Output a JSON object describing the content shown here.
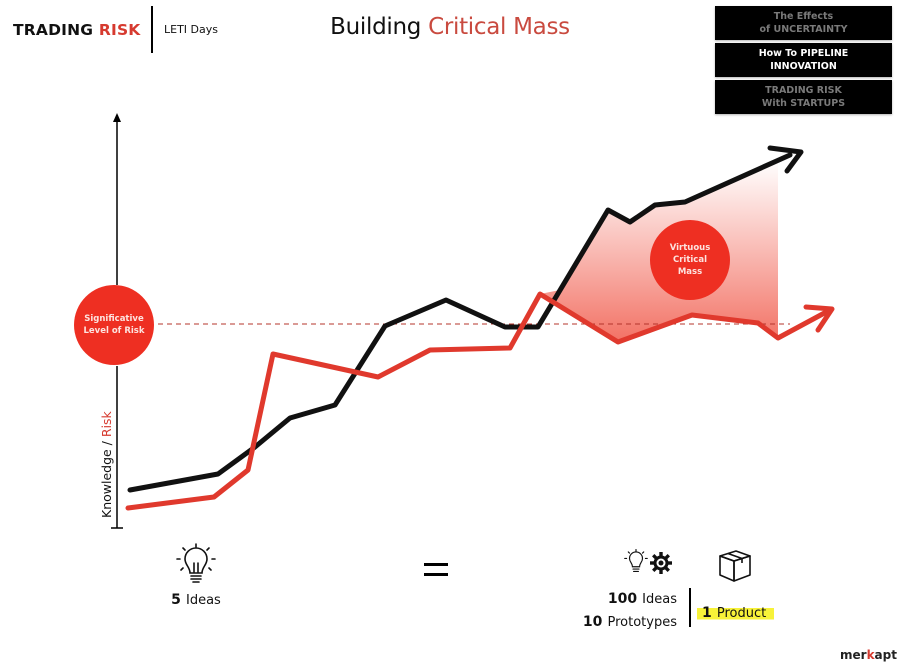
{
  "header": {
    "brand_primary": "TRADING",
    "brand_accent": "RISK",
    "subbrand": "LETI Days",
    "title_primary": "Building",
    "title_accent": "Critical Mass"
  },
  "nav": {
    "items": [
      {
        "line1": "The Effects",
        "line2": "of UNCERTAINTY",
        "state": "inactive"
      },
      {
        "line1": "How To PIPELINE",
        "line2": "INNOVATION",
        "state": "active"
      },
      {
        "line1": "TRADING RISK",
        "line2": "With STARTUPS",
        "state": "inactive"
      }
    ]
  },
  "diagram": {
    "y_axis_label_primary": "Knowledge /",
    "y_axis_label_accent": "Risk",
    "risk_threshold_label_line1": "Significative",
    "risk_threshold_label_line2": "Level of Risk",
    "critical_mass_label_line1": "Virtuous",
    "critical_mass_label_line2": "Critical",
    "critical_mass_label_line3": "Mass",
    "colors": {
      "knowledge_line": "#111111",
      "risk_line": "#e0392d",
      "accent": "#d63a2f",
      "circle_fill": "#ee2f22",
      "highlight": "#f7f239"
    },
    "series": [
      {
        "name": "Knowledge",
        "color": "#111111",
        "points": [
          [
            130,
            490
          ],
          [
            218,
            474
          ],
          [
            255,
            447
          ],
          [
            290,
            418
          ],
          [
            335,
            405
          ],
          [
            385,
            326
          ],
          [
            446,
            300
          ],
          [
            505,
            327
          ],
          [
            538,
            327
          ],
          [
            608,
            210
          ],
          [
            630,
            222
          ],
          [
            655,
            205
          ],
          [
            685,
            202
          ],
          [
            790,
            155
          ]
        ]
      },
      {
        "name": "Risk",
        "color": "#e0392d",
        "points": [
          [
            128,
            508
          ],
          [
            214,
            497
          ],
          [
            248,
            470
          ],
          [
            273,
            354
          ],
          [
            378,
            377
          ],
          [
            430,
            350
          ],
          [
            510,
            348
          ],
          [
            540,
            294
          ],
          [
            618,
            342
          ],
          [
            692,
            315
          ],
          [
            758,
            323
          ],
          [
            778,
            338
          ],
          [
            830,
            310
          ]
        ]
      }
    ],
    "risk_threshold_y": 324
  },
  "summary": {
    "left_count": "5",
    "left_label": "Ideas",
    "equals_symbol": "=",
    "ideas_count": "100",
    "ideas_label": "Ideas",
    "prototypes_count": "10",
    "prototypes_label": "Prototypes",
    "product_count": "1",
    "product_label": "Product",
    "icons": [
      "lightbulb-icon",
      "lightbulb-icon",
      "gear-icon",
      "box-icon"
    ]
  },
  "footer": {
    "logo_primary": "mer",
    "logo_accent": "k",
    "logo_suffix": "apt"
  }
}
